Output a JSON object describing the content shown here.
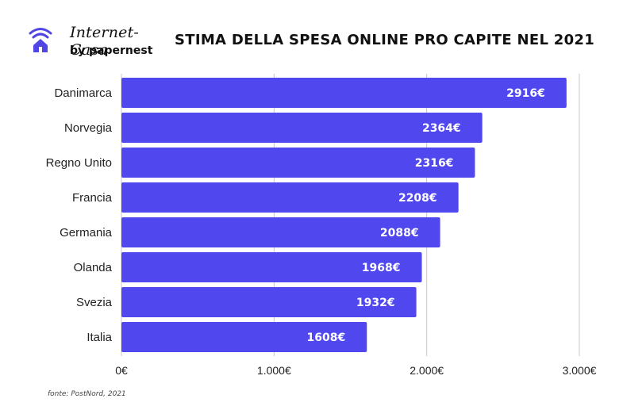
{
  "header": {
    "brand": "Internet-Casa",
    "byline": "by papernest",
    "title": "STIMA DELLA SPESA ONLINE PRO CAPITE NEL 2021"
  },
  "footer": {
    "source": "fonte: PostNord, 2021"
  },
  "colors": {
    "bar": "#5048ee",
    "bar_label": "#ffffff",
    "grid": "#c8c8c8",
    "logo": "#4f46e5"
  },
  "chart_data": {
    "type": "bar",
    "orientation": "horizontal",
    "title": "STIMA DELLA SPESA ONLINE PRO CAPITE NEL 2021",
    "categories": [
      "Danimarca",
      "Norvegia",
      "Regno Unito",
      "Francia",
      "Germania",
      "Olanda",
      "Svezia",
      "Italia"
    ],
    "values": [
      2916,
      2364,
      2316,
      2208,
      2088,
      1968,
      1932,
      1608
    ],
    "value_labels": [
      "2916€",
      "2364€",
      "2316€",
      "2208€",
      "2088€",
      "1968€",
      "1932€",
      "1608€"
    ],
    "xlim": [
      0,
      3000
    ],
    "x_ticks": [
      0,
      1000,
      2000,
      3000
    ],
    "x_tick_labels": [
      "0€",
      "1.000€",
      "2.000€",
      "3.000€"
    ],
    "grid": true
  }
}
